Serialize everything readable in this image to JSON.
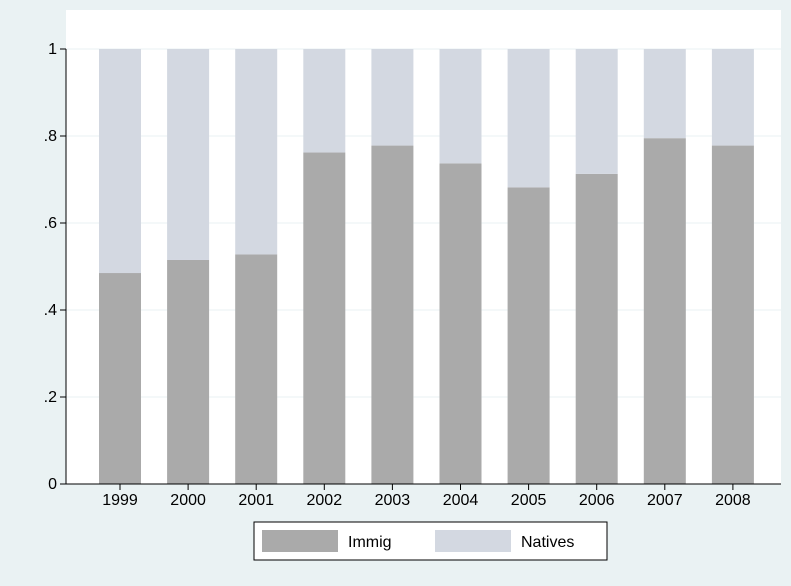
{
  "chart_data": {
    "type": "bar",
    "stacked": true,
    "categories": [
      "1999",
      "2000",
      "2001",
      "2002",
      "2003",
      "2004",
      "2005",
      "2006",
      "2007",
      "2008"
    ],
    "series": [
      {
        "name": "Immig",
        "color": "#aaaaaa",
        "values": [
          0.485,
          0.515,
          0.528,
          0.762,
          0.778,
          0.737,
          0.682,
          0.713,
          0.795,
          0.778
        ]
      },
      {
        "name": "Natives",
        "color": "#d3d8e1",
        "values": [
          0.515,
          0.485,
          0.472,
          0.238,
          0.222,
          0.263,
          0.318,
          0.287,
          0.205,
          0.222
        ]
      }
    ],
    "ylim": [
      0,
      1
    ],
    "yticks": [
      0,
      0.2,
      0.4,
      0.6,
      0.8,
      1
    ],
    "ytick_labels": [
      "0",
      ".2",
      ".4",
      ".6",
      ".8",
      "1"
    ],
    "grid": true,
    "legend_position": "bottom",
    "colors": {
      "outer_background": "#eaf2f3",
      "plot_background": "#ffffff",
      "grid": "#eaf2f3"
    }
  }
}
